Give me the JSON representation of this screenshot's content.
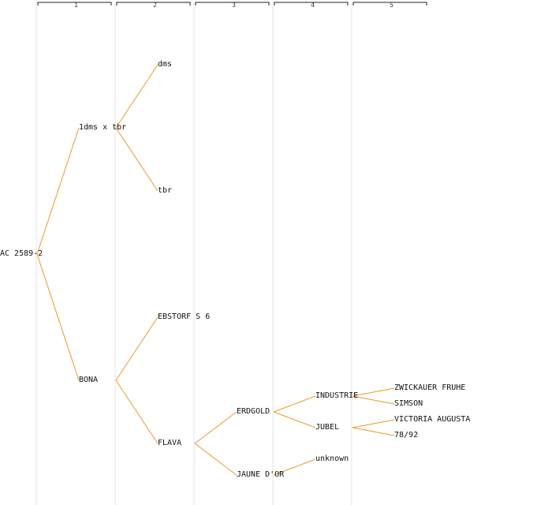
{
  "generations": [
    "1",
    "2",
    "3",
    "4",
    "5"
  ],
  "tree": {
    "label": "AC 2589-2",
    "children": [
      {
        "label": "1dms x tbr",
        "children": [
          {
            "label": "dms"
          },
          {
            "label": "tbr"
          }
        ]
      },
      {
        "label": "BONA",
        "children": [
          {
            "label": "EBSTORF S 6"
          },
          {
            "label": "FLAVA",
            "children": [
              {
                "label": "ERDGOLD",
                "children": [
                  {
                    "label": "INDUSTRIE",
                    "children": [
                      {
                        "label": "ZWICKAUER FRUHE"
                      },
                      {
                        "label": "SIMSON"
                      }
                    ]
                  },
                  {
                    "label": "JUBEL",
                    "children": [
                      {
                        "label": "VICTORIA AUGUSTA"
                      },
                      {
                        "label": "78/92"
                      }
                    ]
                  }
                ]
              },
              {
                "label": "JAUNE D'OR",
                "children": [
                  {
                    "label": "unknown"
                  }
                ]
              }
            ]
          }
        ]
      }
    ]
  },
  "colors": {
    "edge": "#f0962a",
    "column_line": "#e4e4e4",
    "text": "#111111"
  }
}
